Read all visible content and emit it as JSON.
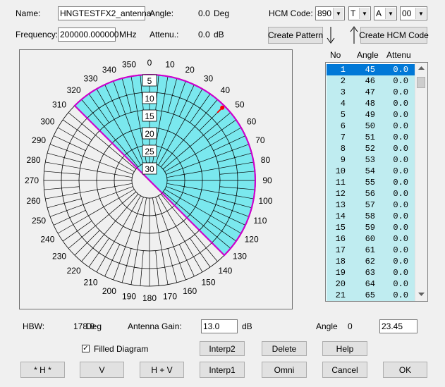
{
  "top": {
    "name_label": "Name:",
    "name_value": "HNGTESTFX2_antenna",
    "angle_label": "Angle:",
    "angle_value": "0.0",
    "angle_unit": "Deg",
    "frequency_label": "Frequency:",
    "frequency_value": "200000.000000",
    "frequency_unit": "MHz",
    "attenu_label": "Attenu.:",
    "attenu_value": "0.0",
    "attenu_unit": "dB",
    "hcm_label": "HCM Code:",
    "hcm_code_1": "890",
    "hcm_code_2": "T",
    "hcm_code_3": "A",
    "hcm_code_4": "00",
    "create_pattern_label": "Create Pattern",
    "create_hcm_label": "Create HCM Code"
  },
  "polar": {
    "angle_labels": [
      "0",
      "10",
      "20",
      "30",
      "40",
      "50",
      "60",
      "70",
      "80",
      "90",
      "100",
      "110",
      "120",
      "130",
      "140",
      "150",
      "160",
      "170",
      "180",
      "190",
      "200",
      "210",
      "220",
      "230",
      "240",
      "250",
      "260",
      "270",
      "280",
      "290",
      "300",
      "310",
      "320",
      "330",
      "340",
      "350"
    ],
    "ring_labels": [
      "5",
      "10",
      "15",
      "20",
      "25",
      "30"
    ],
    "filled_from_deg": 315,
    "filled_to_deg": 135,
    "fill_color": "#7ae8ee",
    "outline_color": "#cc00cc",
    "marker_color": "#ff0000",
    "marker_angle_deg": 45
  },
  "table": {
    "headers": [
      "No",
      "Angle",
      "Attenu"
    ],
    "selected_row": 1,
    "rows": [
      [
        "1",
        "45",
        "0.0"
      ],
      [
        "2",
        "46",
        "0.0"
      ],
      [
        "3",
        "47",
        "0.0"
      ],
      [
        "4",
        "48",
        "0.0"
      ],
      [
        "5",
        "49",
        "0.0"
      ],
      [
        "6",
        "50",
        "0.0"
      ],
      [
        "7",
        "51",
        "0.0"
      ],
      [
        "8",
        "52",
        "0.0"
      ],
      [
        "9",
        "53",
        "0.0"
      ],
      [
        "10",
        "54",
        "0.0"
      ],
      [
        "11",
        "55",
        "0.0"
      ],
      [
        "12",
        "56",
        "0.0"
      ],
      [
        "13",
        "57",
        "0.0"
      ],
      [
        "14",
        "58",
        "0.0"
      ],
      [
        "15",
        "59",
        "0.0"
      ],
      [
        "16",
        "60",
        "0.0"
      ],
      [
        "17",
        "61",
        "0.0"
      ],
      [
        "18",
        "62",
        "0.0"
      ],
      [
        "19",
        "63",
        "0.0"
      ],
      [
        "20",
        "64",
        "0.0"
      ],
      [
        "21",
        "65",
        "0.0"
      ]
    ]
  },
  "bottom": {
    "hbw_label": "HBW:",
    "hbw_value": "178.0",
    "hbw_unit": "Deg",
    "gain_label": "Antenna Gain:",
    "gain_value": "13.0",
    "gain_unit": "dB",
    "angle_label": "Angle",
    "angle_value": "0",
    "angle_input": "23.45",
    "filled_label": "Filled Diagram",
    "filled_checked": true,
    "buttons": {
      "interp2": "Interp2",
      "delete": "Delete",
      "help": "Help",
      "h_star": "* H *",
      "v": "V",
      "h_plus_v": "H + V",
      "interp1": "Interp1",
      "omni": "Omni",
      "cancel": "Cancel",
      "ok": "OK"
    }
  }
}
